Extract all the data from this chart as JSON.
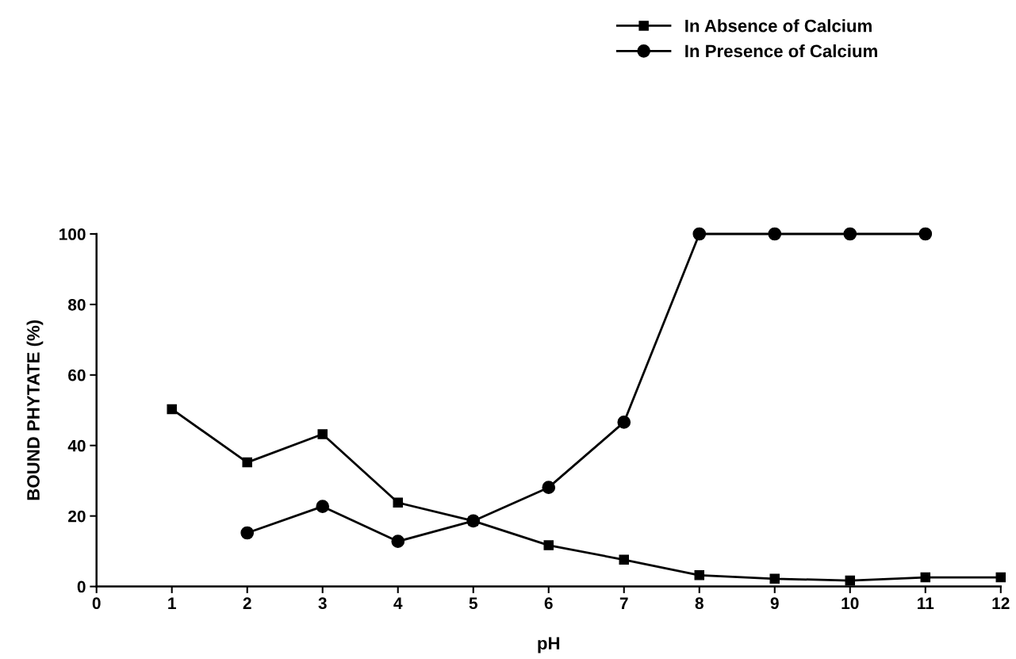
{
  "chart_data": {
    "type": "line",
    "xlabel": "pH",
    "ylabel": "BOUND PHYTATE (%)",
    "xlim": [
      0,
      12
    ],
    "xticks": [
      0,
      1,
      2,
      3,
      4,
      5,
      6,
      7,
      8,
      9,
      10,
      11,
      12
    ],
    "ylim": [
      0,
      100
    ],
    "yticks": [
      0,
      20,
      40,
      60,
      80,
      100
    ],
    "grid": false,
    "legend": "top right",
    "line_style": "solid",
    "series": [
      {
        "name": "In Absence of Calcium",
        "color": "#000000",
        "marker": "square",
        "x": [
          1,
          2,
          3,
          4,
          5,
          6,
          7,
          8,
          9,
          10,
          11,
          12
        ],
        "values": [
          50.3,
          35.2,
          43.2,
          23.8,
          18.6,
          11.7,
          7.6,
          3.2,
          2.2,
          1.7,
          2.6,
          2.6
        ]
      },
      {
        "name": "In Presence of Calcium",
        "color": "#000000",
        "marker": "circle",
        "x": [
          2,
          3,
          4,
          5,
          6,
          7,
          8,
          9,
          10,
          11
        ],
        "values": [
          15.2,
          22.7,
          12.8,
          18.6,
          28.1,
          46.6,
          100,
          100,
          100,
          100
        ]
      }
    ]
  }
}
